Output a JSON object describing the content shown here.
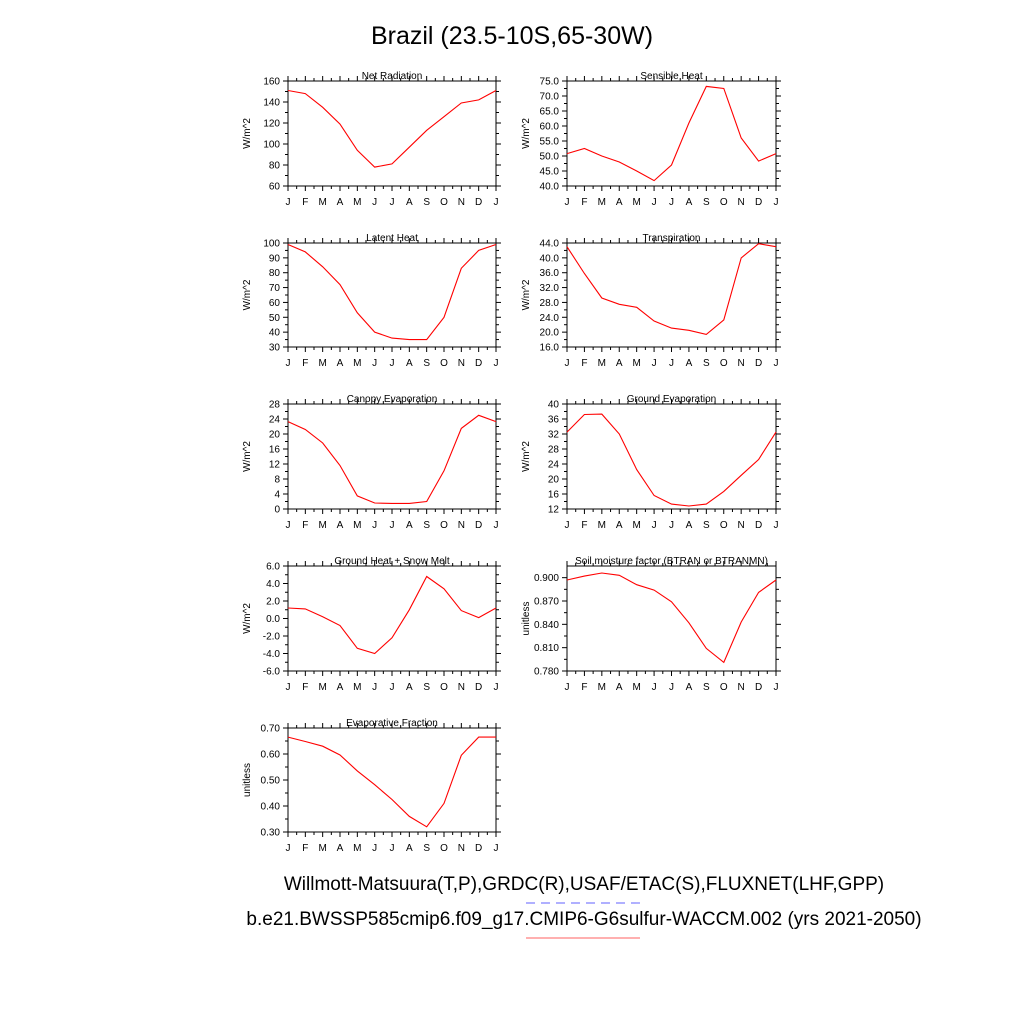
{
  "figure": {
    "title": "Brazil (23.5-10S,65-30W)",
    "footer_line1": "Willmott-Matsuura(T,P),GRDC(R),USAF/ETAC(S),FLUXNET(LHF,GPP)",
    "footer_line2": "b.e21.BWSSP585cmip6.f09_g17.CMIP6-G6sulfur-WACCM.002 (yrs 2021-2050)",
    "line_color": "#ff0000",
    "legend_dash_color": "#8080ff",
    "legend_solid_color": "#ff8080"
  },
  "chart_data": [
    {
      "type": "line",
      "title": "Net Radiation",
      "ylabel": "W/m^2",
      "x": [
        "J",
        "F",
        "M",
        "A",
        "M",
        "J",
        "J",
        "A",
        "S",
        "O",
        "N",
        "D",
        "J"
      ],
      "ylim": [
        60,
        160
      ],
      "yticks": [
        "60",
        "80",
        "100",
        "120",
        "140",
        "160"
      ],
      "series": [
        {
          "values": [
            151,
            148,
            135,
            119,
            94,
            78,
            81,
            97,
            113,
            126,
            139,
            142,
            151
          ]
        }
      ]
    },
    {
      "type": "line",
      "title": "Sensible Heat",
      "ylabel": "W/m^2",
      "x": [
        "J",
        "F",
        "M",
        "A",
        "M",
        "J",
        "J",
        "A",
        "S",
        "O",
        "N",
        "D",
        "J"
      ],
      "ylim": [
        40,
        75
      ],
      "yticks": [
        "40.0",
        "45.0",
        "50.0",
        "55.0",
        "60.0",
        "65.0",
        "70.0",
        "75.0"
      ],
      "series": [
        {
          "values": [
            50.8,
            52.5,
            50.0,
            48.0,
            45.0,
            41.8,
            47.0,
            61.0,
            73.2,
            72.5,
            56.0,
            48.3,
            50.8
          ]
        }
      ]
    },
    {
      "type": "line",
      "title": "Latent Heat",
      "ylabel": "W/m^2",
      "x": [
        "J",
        "F",
        "M",
        "A",
        "M",
        "J",
        "J",
        "A",
        "S",
        "O",
        "N",
        "D",
        "J"
      ],
      "ylim": [
        30,
        100
      ],
      "yticks": [
        "30",
        "40",
        "50",
        "60",
        "70",
        "80",
        "90",
        "100"
      ],
      "series": [
        {
          "values": [
            99,
            94,
            84,
            72,
            53,
            40,
            36,
            35,
            35,
            50,
            83,
            95,
            99
          ]
        }
      ]
    },
    {
      "type": "line",
      "title": "Transpiration",
      "ylabel": "W/m^2",
      "x": [
        "J",
        "F",
        "M",
        "A",
        "M",
        "J",
        "J",
        "A",
        "S",
        "O",
        "N",
        "D",
        "J"
      ],
      "ylim": [
        16,
        44
      ],
      "yticks": [
        "16.0",
        "20.0",
        "24.0",
        "28.0",
        "32.0",
        "36.0",
        "40.0",
        "44.0"
      ],
      "series": [
        {
          "values": [
            43.0,
            35.8,
            29.2,
            27.5,
            26.7,
            23.0,
            21.1,
            20.5,
            19.4,
            23.3,
            40.0,
            43.8,
            43.0
          ]
        }
      ]
    },
    {
      "type": "line",
      "title": "Canopy Evaporation",
      "ylabel": "W/m^2",
      "x": [
        "J",
        "F",
        "M",
        "A",
        "M",
        "J",
        "J",
        "A",
        "S",
        "O",
        "N",
        "D",
        "J"
      ],
      "ylim": [
        0,
        28
      ],
      "yticks": [
        "0",
        "4",
        "8",
        "12",
        "16",
        "20",
        "24",
        "28"
      ],
      "series": [
        {
          "values": [
            23.3,
            21.2,
            17.6,
            11.6,
            3.5,
            1.6,
            1.5,
            1.5,
            2.0,
            10.2,
            21.5,
            25.0,
            23.3
          ]
        }
      ]
    },
    {
      "type": "line",
      "title": "Ground Evaporation",
      "ylabel": "W/m^2",
      "x": [
        "J",
        "F",
        "M",
        "A",
        "M",
        "J",
        "J",
        "A",
        "S",
        "O",
        "N",
        "D",
        "J"
      ],
      "ylim": [
        12,
        40
      ],
      "yticks": [
        "12",
        "16",
        "20",
        "24",
        "28",
        "32",
        "36",
        "40"
      ],
      "series": [
        {
          "values": [
            32.5,
            37.2,
            37.3,
            32.0,
            22.5,
            15.6,
            13.3,
            12.8,
            13.3,
            16.7,
            21.0,
            25.2,
            32.5
          ]
        }
      ]
    },
    {
      "type": "line",
      "title": "Ground Heat + Snow Melt",
      "ylabel": "W/m^2",
      "x": [
        "J",
        "F",
        "M",
        "A",
        "M",
        "J",
        "J",
        "A",
        "S",
        "O",
        "N",
        "D",
        "J"
      ],
      "ylim": [
        -6,
        6
      ],
      "yticks": [
        "-6.0",
        "-4.0",
        "-2.0",
        "0.0",
        "2.0",
        "4.0",
        "6.0"
      ],
      "series": [
        {
          "values": [
            1.2,
            1.1,
            0.2,
            -0.8,
            -3.4,
            -4.0,
            -2.2,
            1.0,
            4.8,
            3.4,
            0.9,
            0.1,
            1.2
          ]
        }
      ]
    },
    {
      "type": "line",
      "title": "Soil moisture factor (BTRAN or BTRANMN)",
      "ylabel": "unitless",
      "x": [
        "J",
        "F",
        "M",
        "A",
        "M",
        "J",
        "J",
        "A",
        "S",
        "O",
        "N",
        "D",
        "J"
      ],
      "ylim": [
        0.78,
        0.915
      ],
      "yticks": [
        "0.780",
        "0.810",
        "0.840",
        "0.870",
        "0.900"
      ],
      "series": [
        {
          "values": [
            0.897,
            0.902,
            0.906,
            0.903,
            0.891,
            0.884,
            0.869,
            0.842,
            0.809,
            0.791,
            0.843,
            0.881,
            0.897
          ]
        }
      ]
    },
    {
      "type": "line",
      "title": "Evaporative Fraction",
      "ylabel": "unitless",
      "x": [
        "J",
        "F",
        "M",
        "A",
        "M",
        "J",
        "J",
        "A",
        "S",
        "O",
        "N",
        "D",
        "J"
      ],
      "ylim": [
        0.3,
        0.7
      ],
      "yticks": [
        "0.30",
        "0.40",
        "0.50",
        "0.60",
        "0.70"
      ],
      "series": [
        {
          "values": [
            0.665,
            0.648,
            0.63,
            0.596,
            0.535,
            0.482,
            0.425,
            0.36,
            0.32,
            0.41,
            0.595,
            0.665,
            0.665
          ]
        }
      ]
    }
  ]
}
